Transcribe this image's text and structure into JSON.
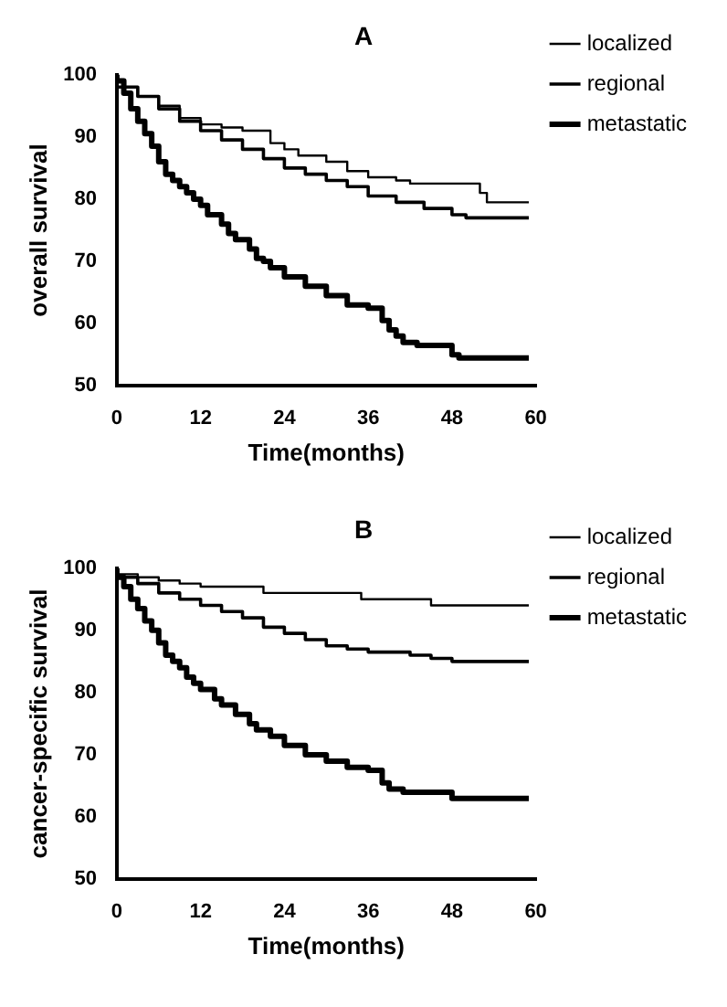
{
  "chart_data": [
    {
      "type": "step",
      "title": "A",
      "xlabel": "Time(months)",
      "ylabel": "overall survival",
      "xlim": [
        0,
        60
      ],
      "xticks": [
        0,
        12,
        24,
        36,
        48,
        60
      ],
      "ylim": [
        50,
        100
      ],
      "yticks": [
        50,
        60,
        70,
        80,
        90,
        100
      ],
      "grid": false,
      "legend": "right",
      "marker": "none",
      "series": [
        {
          "name": "localized",
          "color": "#000000",
          "x": [
            0,
            3,
            6,
            9,
            12,
            15,
            18,
            22,
            24,
            26,
            30,
            33,
            36,
            40,
            42,
            44,
            52,
            53,
            54,
            59
          ],
          "values": [
            100,
            98,
            96.5,
            95,
            93,
            92,
            91.5,
            91,
            89,
            88,
            87,
            86,
            84.5,
            83.5,
            83,
            82.5,
            82.5,
            81,
            79.5,
            79.5
          ]
        },
        {
          "name": "regional",
          "color": "#000000",
          "x": [
            0,
            3,
            6,
            9,
            12,
            15,
            18,
            21,
            24,
            27,
            30,
            33,
            36,
            40,
            44,
            48,
            50,
            53,
            59
          ],
          "values": [
            100,
            98,
            96.5,
            94.5,
            92.5,
            91,
            89.5,
            88,
            86.5,
            85,
            84,
            83,
            82,
            80.5,
            79.5,
            78.5,
            77.5,
            77,
            77
          ]
        },
        {
          "name": "metastatic",
          "color": "#000000",
          "x": [
            0,
            1,
            2,
            3,
            4,
            5,
            6,
            7,
            8,
            9,
            10,
            11,
            12,
            13,
            15,
            16,
            17,
            19,
            20,
            21,
            22,
            24,
            27,
            30,
            33,
            36,
            38,
            39,
            40,
            41,
            43,
            48,
            49,
            53,
            59
          ],
          "values": [
            100,
            99,
            97,
            94.5,
            92.5,
            90.5,
            88.5,
            86,
            84,
            83,
            82,
            81,
            80,
            79,
            77.5,
            76,
            74.5,
            73.5,
            72,
            70.5,
            70,
            69,
            67.5,
            66,
            64.5,
            63,
            62.5,
            60.5,
            59,
            58,
            57,
            56.5,
            55,
            54.5,
            54.5
          ]
        }
      ]
    },
    {
      "type": "step",
      "title": "B",
      "xlabel": "Time(months)",
      "ylabel": "cancer-specific survival",
      "xlim": [
        0,
        60
      ],
      "xticks": [
        0,
        12,
        24,
        36,
        48,
        60
      ],
      "ylim": [
        50,
        100
      ],
      "yticks": [
        50,
        60,
        70,
        80,
        90,
        100
      ],
      "grid": false,
      "legend": "right",
      "marker": "none",
      "series": [
        {
          "name": "localized",
          "color": "#000000",
          "x": [
            0,
            3,
            6,
            9,
            12,
            21,
            24,
            35,
            36,
            45,
            46,
            59
          ],
          "values": [
            100,
            99,
            98.5,
            98,
            97.5,
            97,
            96,
            96,
            95,
            95,
            94,
            94
          ]
        },
        {
          "name": "regional",
          "color": "#000000",
          "x": [
            0,
            3,
            6,
            9,
            12,
            15,
            18,
            21,
            24,
            27,
            30,
            33,
            36,
            42,
            45,
            48,
            52,
            59
          ],
          "values": [
            100,
            98.5,
            97.5,
            96,
            95,
            94,
            93,
            92,
            90.5,
            89.5,
            88.5,
            87.5,
            87,
            86.5,
            86,
            85.5,
            85,
            85
          ]
        },
        {
          "name": "metastatic",
          "color": "#000000",
          "x": [
            0,
            1,
            2,
            3,
            4,
            5,
            6,
            7,
            8,
            9,
            10,
            11,
            12,
            14,
            15,
            17,
            19,
            20,
            22,
            24,
            27,
            30,
            33,
            36,
            38,
            39,
            41,
            48,
            52,
            59
          ],
          "values": [
            100,
            98.5,
            97,
            95,
            93.5,
            91.5,
            90,
            88,
            86,
            85,
            84,
            82.5,
            81.5,
            80.5,
            79,
            78,
            76.5,
            75,
            74,
            73,
            71.5,
            70,
            69,
            68,
            67.5,
            65.5,
            64.5,
            64,
            63,
            63
          ]
        }
      ]
    }
  ]
}
